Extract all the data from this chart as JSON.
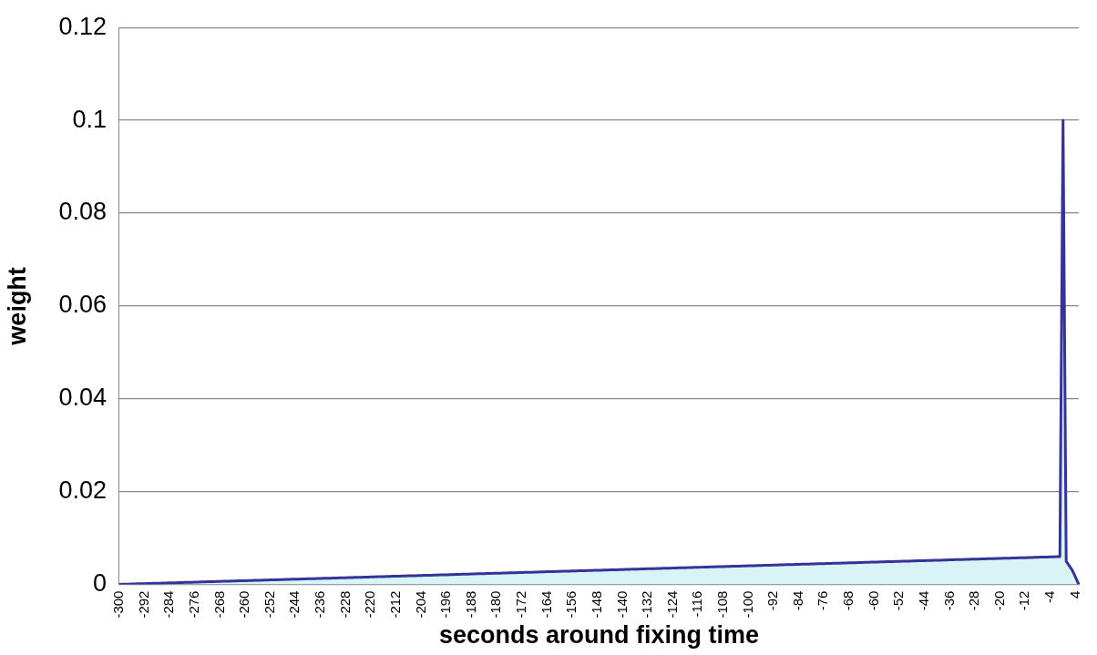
{
  "chart_data": {
    "type": "area",
    "xlabel": "seconds around fixing time",
    "ylabel": "weight",
    "categories": [
      "-300",
      null,
      null,
      null,
      null,
      null,
      null,
      null,
      "-292",
      null,
      null,
      null,
      null,
      null,
      null,
      null,
      "-284",
      null,
      null,
      null,
      null,
      null,
      null,
      null,
      "-276",
      null,
      null,
      null,
      null,
      null,
      null,
      null,
      "-268",
      null,
      null,
      null,
      null,
      null,
      null,
      null,
      "-260",
      null,
      null,
      null,
      null,
      null,
      null,
      null,
      "-252",
      null,
      null,
      null,
      null,
      null,
      null,
      null,
      "-244",
      null,
      null,
      null,
      null,
      null,
      null,
      null,
      "-236",
      null,
      null,
      null,
      null,
      null,
      null,
      null,
      "-228",
      null,
      null,
      null,
      null,
      null,
      null,
      null,
      "-220",
      null,
      null,
      null,
      null,
      null,
      null,
      null,
      "-212",
      null,
      null,
      null,
      null,
      null,
      null,
      null,
      "-204",
      null,
      null,
      null,
      null,
      null,
      null,
      null,
      "-196",
      null,
      null,
      null,
      null,
      null,
      null,
      null,
      "-188",
      null,
      null,
      null,
      null,
      null,
      null,
      null,
      "-180",
      null,
      null,
      null,
      null,
      null,
      null,
      null,
      "-172",
      null,
      null,
      null,
      null,
      null,
      null,
      null,
      "-164",
      null,
      null,
      null,
      null,
      null,
      null,
      null,
      "-156",
      null,
      null,
      null,
      null,
      null,
      null,
      null,
      "-148",
      null,
      null,
      null,
      null,
      null,
      null,
      null,
      "-140",
      null,
      null,
      null,
      null,
      null,
      null,
      null,
      "-132",
      null,
      null,
      null,
      null,
      null,
      null,
      null,
      "-124",
      null,
      null,
      null,
      null,
      null,
      null,
      null,
      "-116",
      null,
      null,
      null,
      null,
      null,
      null,
      null,
      "-108",
      null,
      null,
      null,
      null,
      null,
      null,
      null,
      "-100",
      null,
      null,
      null,
      null,
      null,
      null,
      null,
      "-92",
      null,
      null,
      null,
      null,
      null,
      null,
      null,
      "-84",
      null,
      null,
      null,
      null,
      null,
      null,
      null,
      "-76",
      null,
      null,
      null,
      null,
      null,
      null,
      null,
      "-68",
      null,
      null,
      null,
      null,
      null,
      null,
      null,
      "-60",
      null,
      null,
      null,
      null,
      null,
      null,
      null,
      "-52",
      null,
      null,
      null,
      null,
      null,
      null,
      null,
      "-44",
      null,
      null,
      null,
      null,
      null,
      null,
      null,
      "-36",
      null,
      null,
      null,
      null,
      null,
      null,
      null,
      "-28",
      null,
      null,
      null,
      null,
      null,
      null,
      null,
      "-20",
      null,
      null,
      null,
      null,
      null,
      null,
      null,
      "-12",
      null,
      null,
      null,
      null,
      null,
      null,
      null,
      "-4",
      null,
      null,
      null,
      null,
      null,
      null,
      null,
      "4",
      null
    ],
    "series": [
      {
        "color": "#333399",
        "values": [
          2e-05,
          4e-05,
          6e-05,
          8e-05,
          0.0001,
          0.00012,
          0.00014,
          0.00016,
          0.00018,
          0.0002,
          0.00022,
          0.00024,
          0.00026,
          0.00028,
          0.0003,
          0.00032,
          0.00034,
          0.00036,
          0.00038,
          0.0004,
          0.00042,
          0.00044,
          0.00046,
          0.00048,
          0.0005,
          0.00052,
          0.00054,
          0.00056,
          0.00058,
          0.0006,
          0.00062,
          0.00064,
          0.00066,
          0.00068,
          0.0007,
          0.00072,
          0.00074,
          0.00076,
          0.00078,
          0.0008,
          0.00082,
          0.00084,
          0.00086,
          0.00088,
          0.0009,
          0.00092,
          0.00094,
          0.00096,
          0.00098,
          0.001,
          0.00102,
          0.00104,
          0.00106,
          0.00108,
          0.0011,
          0.00112,
          0.00114,
          0.00116,
          0.00118,
          0.0012,
          0.00122,
          0.00124,
          0.00126,
          0.00128,
          0.0013,
          0.00132,
          0.00134,
          0.00136,
          0.00138,
          0.0014,
          0.00142,
          0.00144,
          0.00146,
          0.00148,
          0.0015,
          0.00152,
          0.00154,
          0.00156,
          0.00158,
          0.0016,
          0.00162,
          0.00164,
          0.00166,
          0.00168,
          0.0017,
          0.00172,
          0.00174,
          0.00176,
          0.00178,
          0.0018,
          0.00182,
          0.00184,
          0.00186,
          0.00188,
          0.0019,
          0.00192,
          0.00194,
          0.00196,
          0.00198,
          0.002,
          0.00202,
          0.00204,
          0.00206,
          0.00208,
          0.0021,
          0.00212,
          0.00214,
          0.00216,
          0.00218,
          0.0022,
          0.00222,
          0.00224,
          0.00226,
          0.00228,
          0.0023,
          0.00232,
          0.00234,
          0.00236,
          0.00238,
          0.0024,
          0.00242,
          0.00244,
          0.00246,
          0.00248,
          0.0025,
          0.00252,
          0.00254,
          0.00256,
          0.00258,
          0.0026,
          0.00262,
          0.00264,
          0.00266,
          0.00268,
          0.0027,
          0.00272,
          0.00274,
          0.00276,
          0.00278,
          0.0028,
          0.00282,
          0.00284,
          0.00286,
          0.00288,
          0.0029,
          0.00292,
          0.00294,
          0.00296,
          0.00298,
          0.003,
          0.00302,
          0.00304,
          0.00306,
          0.00308,
          0.0031,
          0.00312,
          0.00314,
          0.00316,
          0.00318,
          0.0032,
          0.00322,
          0.00324,
          0.00326,
          0.00328,
          0.0033,
          0.00332,
          0.00334,
          0.00336,
          0.00338,
          0.0034,
          0.00342,
          0.00344,
          0.00346,
          0.00348,
          0.0035,
          0.00352,
          0.00354,
          0.00356,
          0.00358,
          0.0036,
          0.00362,
          0.00364,
          0.00366,
          0.00368,
          0.0037,
          0.00372,
          0.00374,
          0.00376,
          0.00378,
          0.0038,
          0.00382,
          0.00384,
          0.00386,
          0.00388,
          0.0039,
          0.00392,
          0.00394,
          0.00396,
          0.00398,
          0.004,
          0.00402,
          0.00404,
          0.00406,
          0.00408,
          0.0041,
          0.00412,
          0.00414,
          0.00416,
          0.00418,
          0.0042,
          0.00422,
          0.00424,
          0.00426,
          0.00428,
          0.0043,
          0.00432,
          0.00434,
          0.00436,
          0.00438,
          0.0044,
          0.00442,
          0.00444,
          0.00446,
          0.00448,
          0.0045,
          0.00452,
          0.00454,
          0.00456,
          0.00458,
          0.0046,
          0.00462,
          0.00464,
          0.00466,
          0.00468,
          0.0047,
          0.00472,
          0.00474,
          0.00476,
          0.00478,
          0.0048,
          0.00482,
          0.00484,
          0.00486,
          0.00488,
          0.0049,
          0.00492,
          0.00494,
          0.00496,
          0.00498,
          0.005,
          0.00502,
          0.00504,
          0.00506,
          0.00508,
          0.0051,
          0.00512,
          0.00514,
          0.00516,
          0.00518,
          0.0052,
          0.00522,
          0.00524,
          0.00526,
          0.00528,
          0.0053,
          0.00532,
          0.00534,
          0.00536,
          0.00538,
          0.0054,
          0.00542,
          0.00544,
          0.00546,
          0.00548,
          0.0055,
          0.00552,
          0.00554,
          0.00556,
          0.00558,
          0.0056,
          0.00562,
          0.00564,
          0.00566,
          0.00568,
          0.0057,
          0.00572,
          0.00574,
          0.00576,
          0.00578,
          0.0058,
          0.00582,
          0.00584,
          0.00586,
          0.00588,
          0.0059,
          0.00592,
          0.00594,
          0.00596,
          0.00598,
          0.006,
          0.1,
          0.005,
          0.004,
          0.003,
          0.0015,
          0
        ]
      }
    ],
    "ylim": [
      0,
      0.12
    ],
    "yticks": [
      0,
      0.02,
      0.04,
      0.06,
      0.08,
      0.1,
      0.12
    ],
    "grid": "y"
  }
}
